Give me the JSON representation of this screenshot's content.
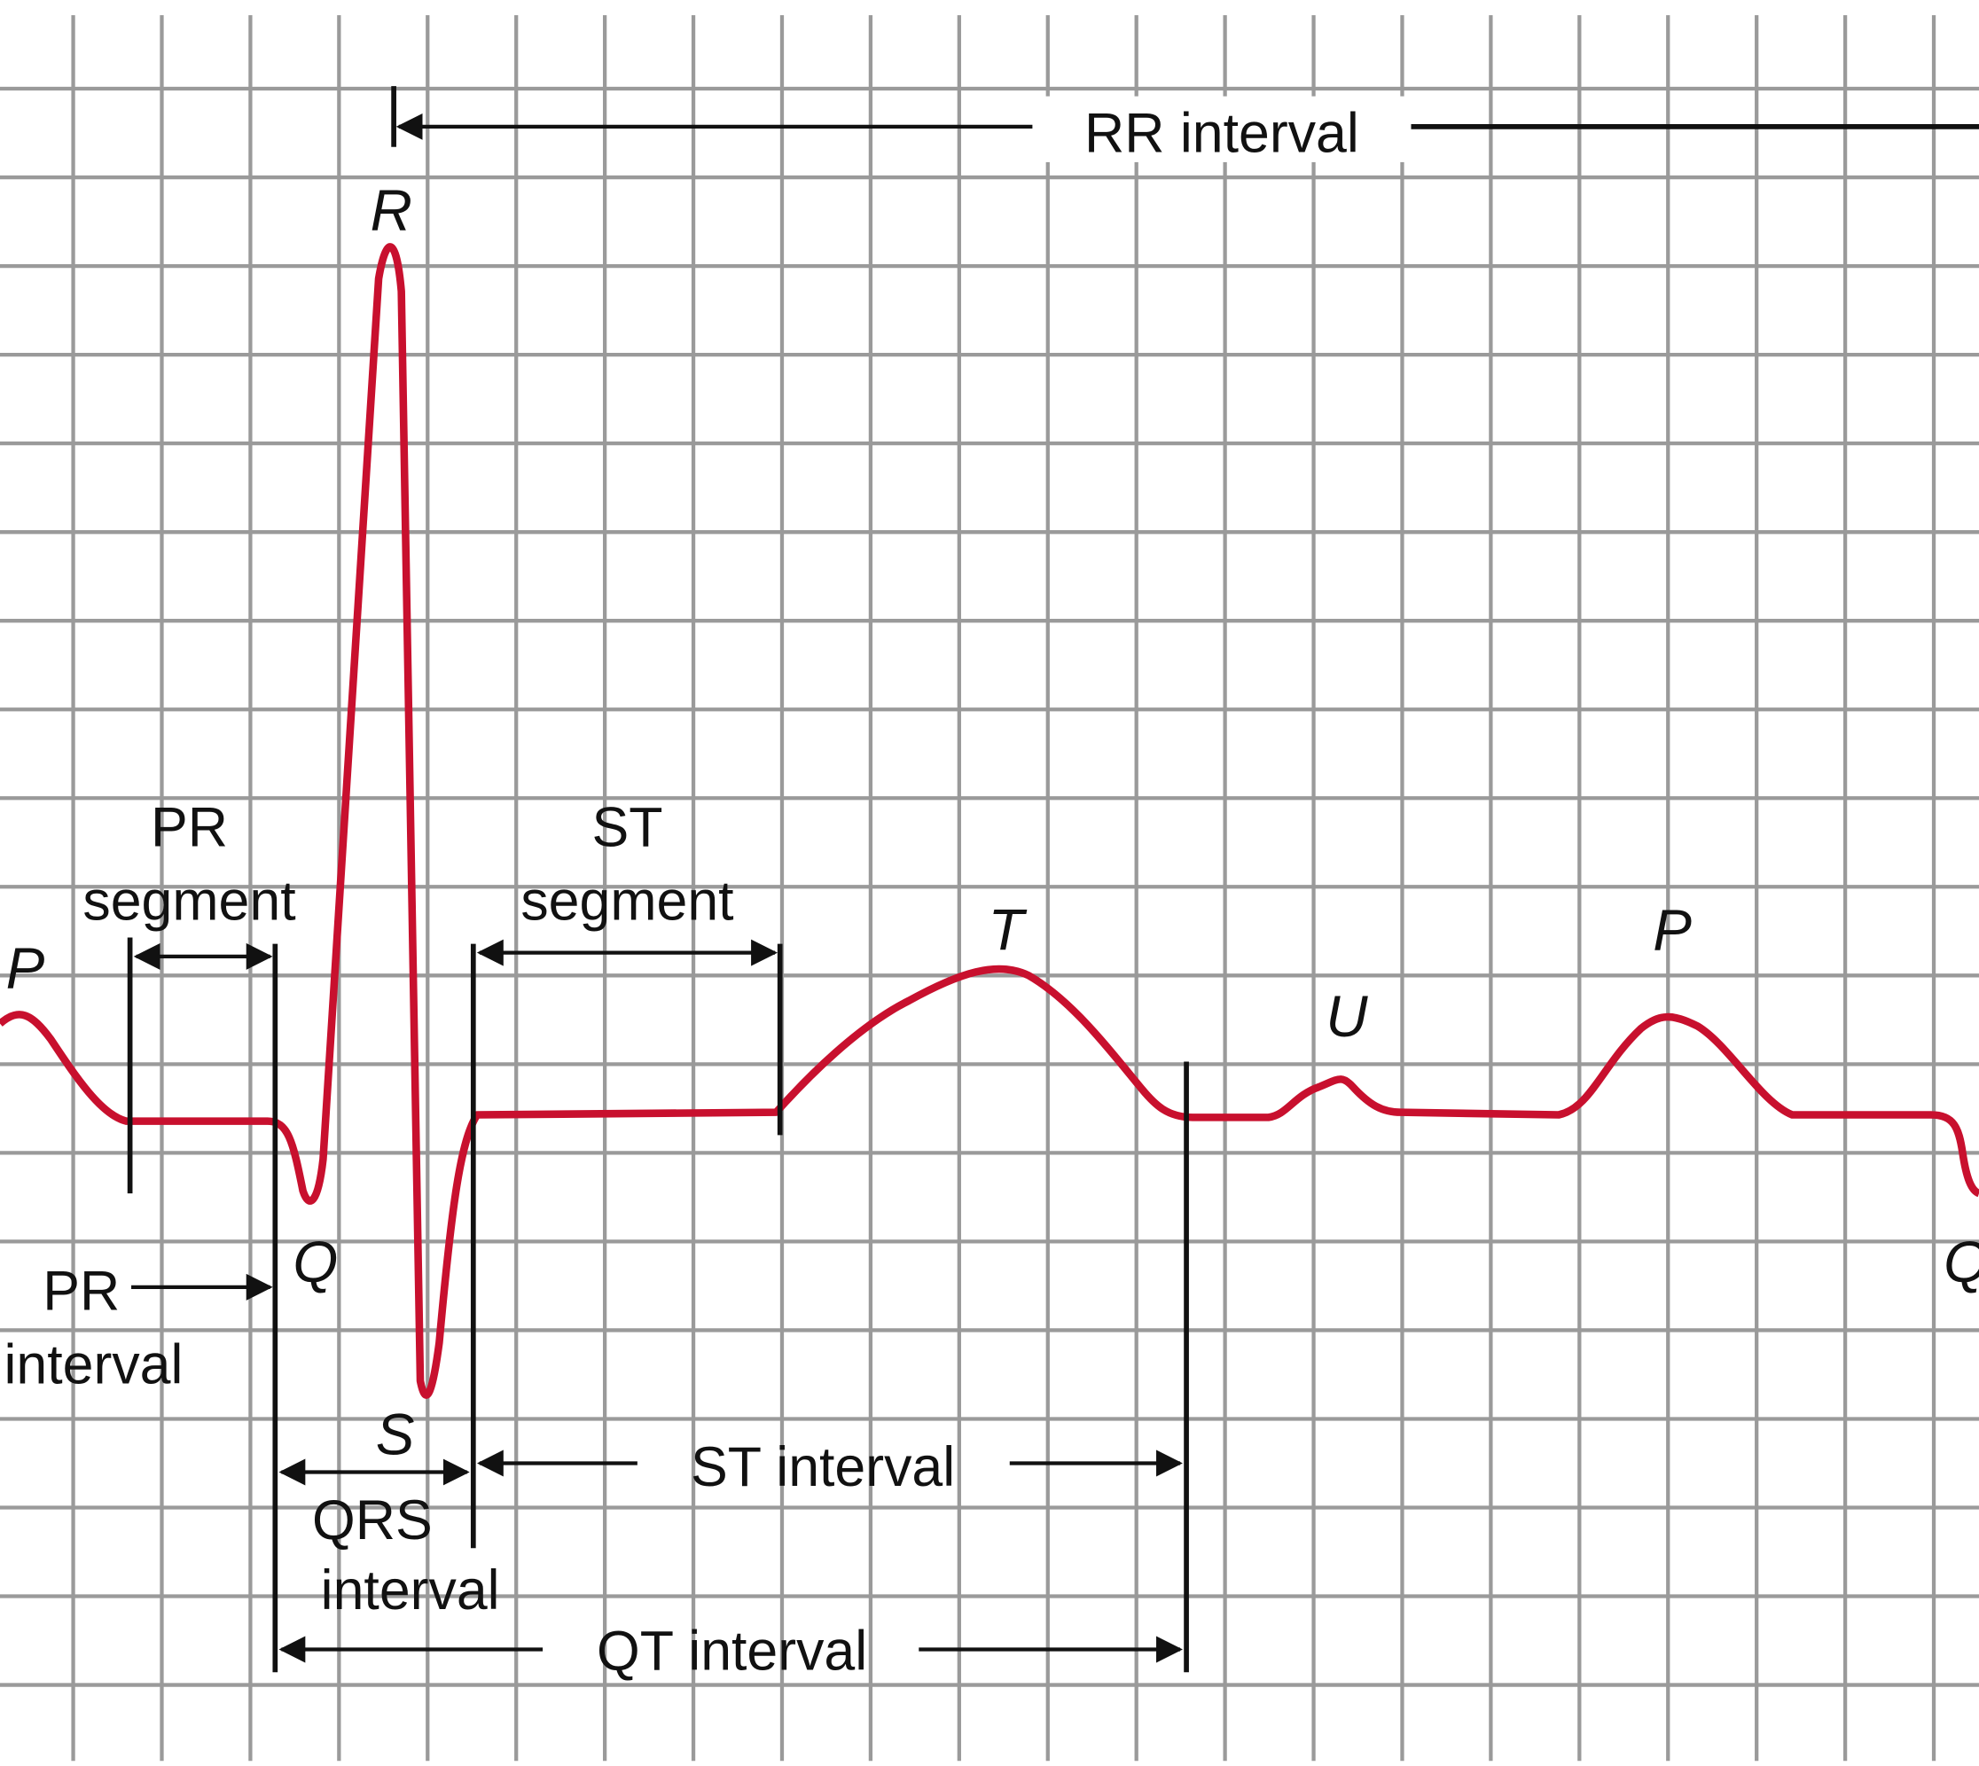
{
  "waves": {
    "p_first": "P",
    "r": "R",
    "q_first": "Q",
    "s": "S",
    "t": "T",
    "u": "U",
    "p_second": "P",
    "q_second": "Q"
  },
  "intervals": {
    "rr": "RR interval",
    "pr_segment": [
      "PR",
      "segment"
    ],
    "st_segment": [
      "ST",
      "segment"
    ],
    "pr_interval": [
      "PR",
      "interval"
    ],
    "qrs_interval": [
      "QRS",
      "interval"
    ],
    "st_interval": "ST interval",
    "qt_interval": "QT interval"
  }
}
